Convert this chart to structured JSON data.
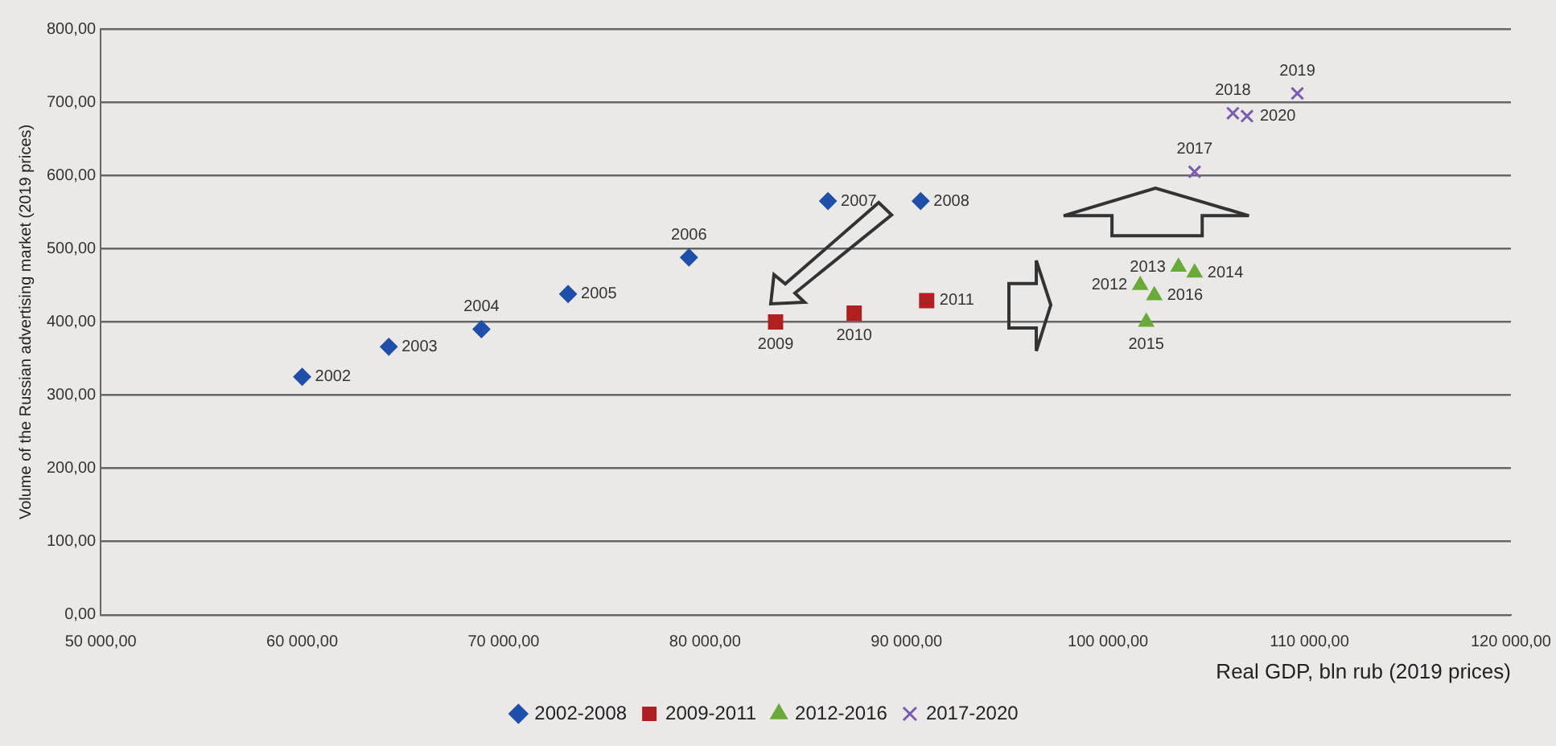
{
  "chart_data": {
    "type": "scatter",
    "xlabel": "Real GDP, bln rub (2019 prices)",
    "ylabel": "Volume of the Russian advertising market (2019 prices)",
    "xlim": [
      50000,
      120000
    ],
    "xticks": [
      {
        "value": 50000,
        "label": "50 000,00"
      },
      {
        "value": 60000,
        "label": "60 000,00"
      },
      {
        "value": 70000,
        "label": "70 000,00"
      },
      {
        "value": 80000,
        "label": "80 000,00"
      },
      {
        "value": 90000,
        "label": "90 000,00"
      },
      {
        "value": 100000,
        "label": "100 000,00"
      },
      {
        "value": 110000,
        "label": "110 000,00"
      },
      {
        "value": 120000,
        "label": "120 000,00"
      }
    ],
    "ylim": [
      0,
      800
    ],
    "yticks": [
      {
        "value": 0,
        "label": "0,00"
      },
      {
        "value": 100,
        "label": "100,00"
      },
      {
        "value": 200,
        "label": "200,00"
      },
      {
        "value": 300,
        "label": "300,00"
      },
      {
        "value": 400,
        "label": "400,00"
      },
      {
        "value": 500,
        "label": "500,00"
      },
      {
        "value": 600,
        "label": "600,00"
      },
      {
        "value": 700,
        "label": "700,00"
      },
      {
        "value": 800,
        "label": "800,00"
      }
    ],
    "grid": "y",
    "legend": "bottom",
    "series": [
      {
        "name": "2002-2008",
        "color": "#1f4fa8",
        "marker": "diamond",
        "x": [
          60000,
          64300,
          68900,
          73200,
          79200,
          86100,
          90700
        ],
        "values": [
          325,
          366,
          390,
          438,
          488,
          565,
          565
        ]
      },
      {
        "name": "2009-2011",
        "color": "#b02020",
        "marker": "square",
        "x": [
          83500,
          87400,
          91000
        ],
        "values": [
          400,
          412,
          429
        ]
      },
      {
        "name": "2012-2016",
        "color": "#6aaa3a",
        "marker": "triangle",
        "x": [
          101600,
          103500,
          104300,
          101900,
          102300
        ],
        "values": [
          450,
          475,
          467,
          400,
          436
        ]
      },
      {
        "name": "2017-2020",
        "color": "#7a5cb0",
        "marker": "cross",
        "x": [
          104300,
          106200,
          109400,
          106900
        ],
        "values": [
          605,
          685,
          712,
          681
        ]
      }
    ],
    "annotations": [
      {
        "text": "2002",
        "x": 60000,
        "y": 325
      },
      {
        "text": "2003",
        "x": 64300,
        "y": 366
      },
      {
        "text": "2004",
        "x": 68900,
        "y": 390
      },
      {
        "text": "2005",
        "x": 73200,
        "y": 438
      },
      {
        "text": "2006",
        "x": 79200,
        "y": 488
      },
      {
        "text": "2007",
        "x": 86100,
        "y": 565
      },
      {
        "text": "2008",
        "x": 90700,
        "y": 565
      },
      {
        "text": "2009",
        "x": 83500,
        "y": 400
      },
      {
        "text": "2010",
        "x": 87400,
        "y": 412
      },
      {
        "text": "2011",
        "x": 91000,
        "y": 429
      },
      {
        "text": "2012",
        "x": 101600,
        "y": 450
      },
      {
        "text": "2013",
        "x": 103500,
        "y": 475
      },
      {
        "text": "2014",
        "x": 104300,
        "y": 467
      },
      {
        "text": "2015",
        "x": 101900,
        "y": 400
      },
      {
        "text": "2016",
        "x": 102300,
        "y": 436
      },
      {
        "text": "2017",
        "x": 104300,
        "y": 605
      },
      {
        "text": "2018",
        "x": 106200,
        "y": 685
      },
      {
        "text": "2019",
        "x": 109400,
        "y": 712
      },
      {
        "text": "2020",
        "x": 106900,
        "y": 681
      }
    ]
  }
}
